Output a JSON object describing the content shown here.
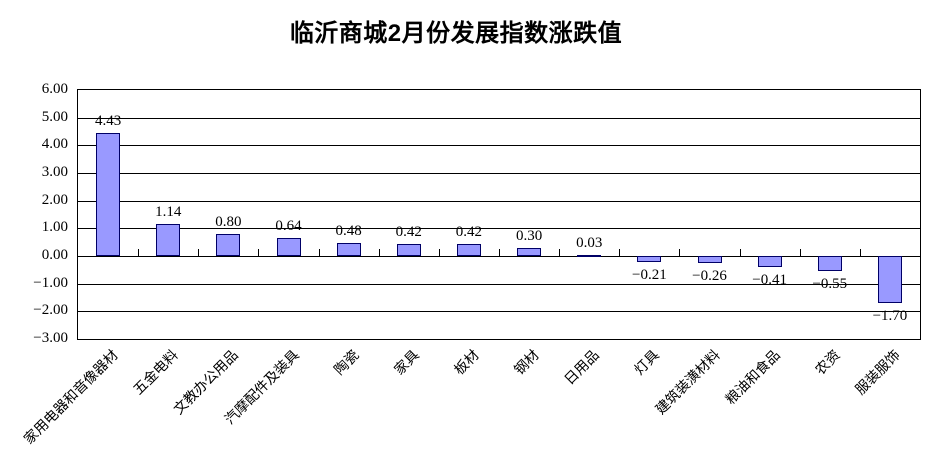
{
  "chart_data": {
    "type": "bar",
    "title": "临沂商城2月份发展指数涨跌值",
    "categories": [
      "家用电器和音像器材",
      "五金电料",
      "文教办公用品",
      "汽摩配件及装具",
      "陶瓷",
      "家具",
      "板材",
      "钢材",
      "日用品",
      "灯具",
      "建筑装潢材料",
      "粮油和食品",
      "农资",
      "服装服饰"
    ],
    "values": [
      4.43,
      1.14,
      0.8,
      0.64,
      0.48,
      0.42,
      0.42,
      0.3,
      0.03,
      -0.21,
      -0.26,
      -0.41,
      -0.55,
      -1.7
    ],
    "data_labels": [
      "4.43",
      "1.14",
      "0.80",
      "0.64",
      "0.48",
      "0.42",
      "0.42",
      "0.30",
      "0.03",
      "−0.21",
      "−0.26",
      "−0.41",
      "−0.55",
      "−1.70"
    ],
    "xlabel": "",
    "ylabel": "",
    "ylim": [
      -3,
      6
    ],
    "y_tick_step": 1,
    "y_tick_labels": [
      "6.00",
      "5.00",
      "4.00",
      "3.00",
      "2.00",
      "1.00",
      "0.00",
      "−1.00",
      "−2.00",
      "−3.00"
    ],
    "grid": "horizontal-on",
    "legend": "none",
    "category_label_rotation_deg": 45,
    "colors": {
      "bar_fill": "#9999FF",
      "bar_border": "#000066",
      "axis": "#000000",
      "background": "#FFFFFF",
      "title_text": "#000000"
    }
  }
}
